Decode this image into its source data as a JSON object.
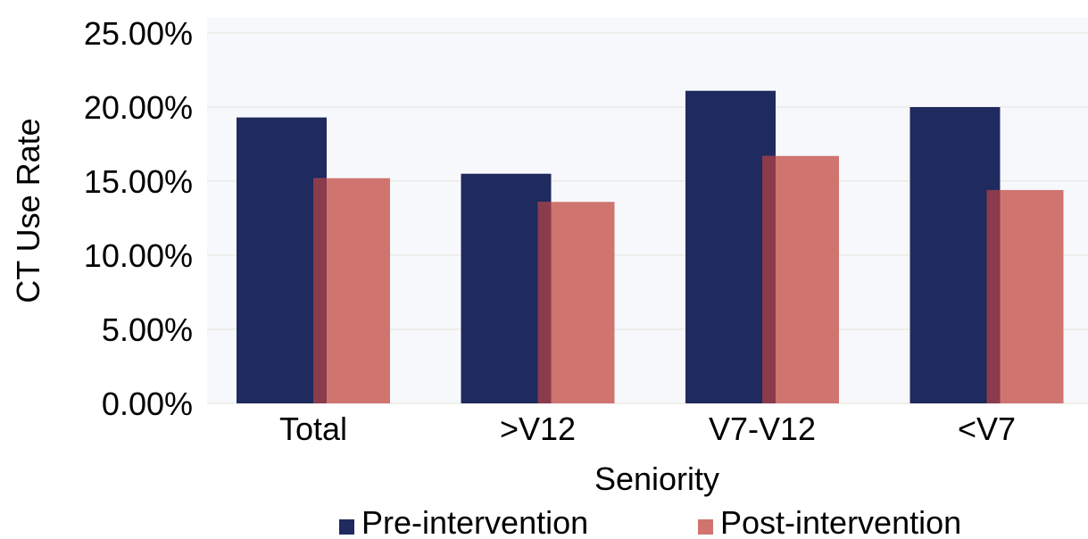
{
  "chart_data": {
    "type": "bar",
    "title": "",
    "xlabel": "Seniority",
    "ylabel": "CT Use Rate",
    "categories": [
      "Total",
      ">V12",
      "V7-V12",
      "<V7"
    ],
    "series": [
      {
        "name": "Pre-intervention",
        "values": [
          19.3,
          15.5,
          21.1,
          20.0
        ],
        "color": "#1f2a5e"
      },
      {
        "name": "Post-intervention",
        "values": [
          15.2,
          13.6,
          16.7,
          14.4
        ],
        "color": "#d07470"
      }
    ],
    "ylim": [
      0,
      25
    ],
    "yticks": [
      0,
      5,
      10,
      15,
      20,
      25
    ],
    "ytick_labels": [
      "0.00%",
      "5.00%",
      "10.00%",
      "15.00%",
      "20.00%",
      "25.00%"
    ],
    "grid": true,
    "legend_position": "bottom",
    "colors": {
      "background": "#f7f8fc",
      "gridline": "#eeeeea",
      "overlap": "#8a3b4c"
    }
  }
}
